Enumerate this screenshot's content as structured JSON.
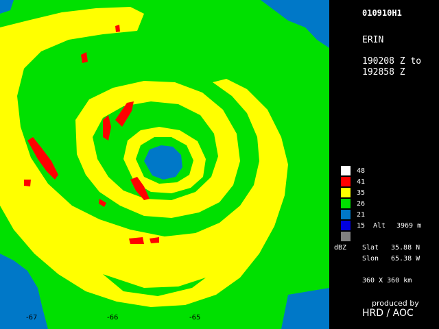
{
  "header": {
    "flight_id": "010910H1",
    "storm_name": "ERIN",
    "time_start": "190208 Z to",
    "time_end": "192858 Z"
  },
  "legend": {
    "levels": [
      {
        "label": "48",
        "color": "#ffffff"
      },
      {
        "label": "41",
        "color": "#ff0000"
      },
      {
        "label": "35",
        "color": "#ffff00"
      },
      {
        "label": "26",
        "color": "#00e000"
      },
      {
        "label": "21",
        "color": "#0078c8"
      },
      {
        "label": "15",
        "color": "#0000e0"
      },
      {
        "label": "",
        "color": "#808080"
      }
    ],
    "units": "dBZ",
    "alt_label": "Alt",
    "alt_value": "3969 m"
  },
  "position": {
    "slat_label": "Slat",
    "slat_value": "35.88 N",
    "slon_label": "Slon",
    "slon_value": "65.38 W",
    "domain": "360 X 360 km"
  },
  "axis": {
    "x_ticks": [
      "-67",
      "-66",
      "-65"
    ]
  },
  "credits": {
    "line1": "produced by",
    "line2": "HRD / AOC"
  },
  "colors": {
    "background": "#000000",
    "radar_green": "#00e000",
    "radar_yellow": "#ffff00",
    "radar_red": "#ff0000",
    "radar_blue": "#0078c8"
  }
}
